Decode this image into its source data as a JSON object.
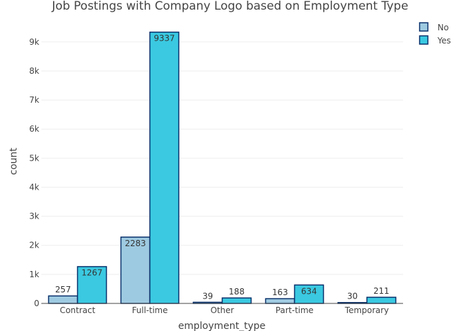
{
  "chart_data": {
    "type": "bar",
    "title": "Job Postings with Company Logo based on Employment Type",
    "xlabel": "employment_type",
    "ylabel": "count",
    "categories": [
      "Contract",
      "Full-time",
      "Other",
      "Part-time",
      "Temporary"
    ],
    "series": [
      {
        "name": "No",
        "values": [
          257,
          2283,
          39,
          163,
          30
        ],
        "color": "#9ecae1"
      },
      {
        "name": "Yes",
        "values": [
          1267,
          9337,
          188,
          634,
          211
        ],
        "color": "#3ac9e1"
      }
    ],
    "bar_outline_color": "#08306b",
    "ylim": [
      0,
      9850
    ],
    "yticks": [
      0,
      1000,
      2000,
      3000,
      4000,
      5000,
      6000,
      7000,
      8000,
      9000
    ],
    "ytick_labels": [
      "0",
      "1k",
      "2k",
      "3k",
      "4k",
      "5k",
      "6k",
      "7k",
      "8k",
      "9k"
    ],
    "grid": true,
    "legend_position": "top-right"
  }
}
